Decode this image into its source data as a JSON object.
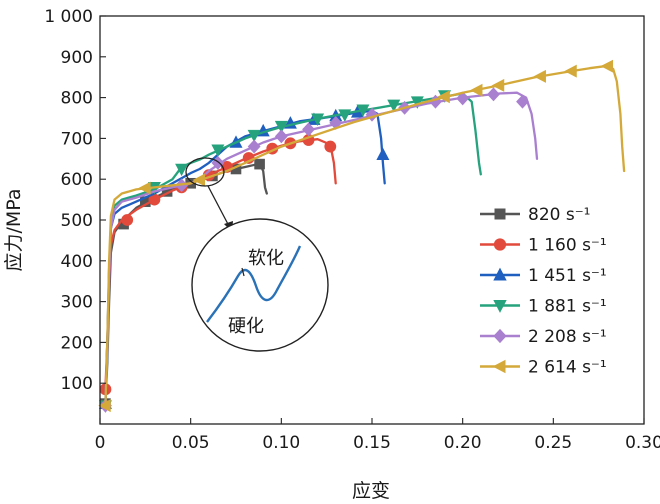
{
  "chart_data": {
    "type": "line",
    "xlabel": "应变",
    "ylabel": "应力/MPa",
    "xlim": [
      0,
      0.3
    ],
    "ylim": [
      0,
      1000
    ],
    "x_ticks": [
      {
        "value": 0,
        "label": "0"
      },
      {
        "value": 0.05,
        "label": "0.05"
      },
      {
        "value": 0.1,
        "label": "0.10"
      },
      {
        "value": 0.15,
        "label": "0.15"
      },
      {
        "value": 0.2,
        "label": "0.20"
      },
      {
        "value": 0.25,
        "label": "0.25"
      },
      {
        "value": 0.3,
        "label": "0.30"
      }
    ],
    "y_ticks": [
      {
        "value": 100,
        "label": "100"
      },
      {
        "value": 200,
        "label": "200"
      },
      {
        "value": 300,
        "label": "300"
      },
      {
        "value": 400,
        "label": "400"
      },
      {
        "value": 500,
        "label": "500"
      },
      {
        "value": 600,
        "label": "600"
      },
      {
        "value": 700,
        "label": "700"
      },
      {
        "value": 800,
        "label": "800"
      },
      {
        "value": 900,
        "label": "900"
      },
      {
        "value": 1000,
        "label": "1 000"
      }
    ],
    "legend_position": "right",
    "annotations": {
      "softening": "软化",
      "hardening": "硬化"
    },
    "series": [
      {
        "name": "820 s⁻¹",
        "color": "#555555",
        "marker": "square",
        "points": [
          [
            0.003,
            50
          ],
          [
            0.004,
            150
          ],
          [
            0.005,
            300
          ],
          [
            0.006,
            420
          ],
          [
            0.008,
            470
          ],
          [
            0.012,
            495
          ],
          [
            0.02,
            530
          ],
          [
            0.03,
            555
          ],
          [
            0.04,
            575
          ],
          [
            0.05,
            590
          ],
          [
            0.06,
            605
          ],
          [
            0.07,
            620
          ],
          [
            0.08,
            630
          ],
          [
            0.088,
            638
          ],
          [
            0.09,
            620
          ],
          [
            0.091,
            580
          ],
          [
            0.092,
            565
          ]
        ],
        "markers": [
          [
            0.003,
            50
          ],
          [
            0.013,
            490
          ],
          [
            0.025,
            545
          ],
          [
            0.037,
            570
          ],
          [
            0.05,
            590
          ],
          [
            0.062,
            608
          ],
          [
            0.075,
            625
          ],
          [
            0.088,
            637
          ]
        ]
      },
      {
        "name": "1 160 s⁻¹",
        "color": "#e24a3b",
        "marker": "circle",
        "points": [
          [
            0.003,
            85
          ],
          [
            0.004,
            200
          ],
          [
            0.005,
            350
          ],
          [
            0.006,
            440
          ],
          [
            0.008,
            475
          ],
          [
            0.012,
            500
          ],
          [
            0.02,
            525
          ],
          [
            0.03,
            550
          ],
          [
            0.04,
            572
          ],
          [
            0.05,
            590
          ],
          [
            0.06,
            610
          ],
          [
            0.07,
            630
          ],
          [
            0.08,
            650
          ],
          [
            0.09,
            668
          ],
          [
            0.1,
            682
          ],
          [
            0.11,
            693
          ],
          [
            0.12,
            698
          ],
          [
            0.127,
            685
          ],
          [
            0.129,
            640
          ],
          [
            0.13,
            590
          ]
        ],
        "markers": [
          [
            0.003,
            85
          ],
          [
            0.015,
            500
          ],
          [
            0.03,
            550
          ],
          [
            0.045,
            580
          ],
          [
            0.06,
            610
          ],
          [
            0.07,
            630
          ],
          [
            0.082,
            652
          ],
          [
            0.095,
            675
          ],
          [
            0.105,
            688
          ],
          [
            0.115,
            696
          ],
          [
            0.127,
            680
          ]
        ]
      },
      {
        "name": "1 451 s⁻¹",
        "color": "#1f5fbf",
        "marker": "triangle-up",
        "points": [
          [
            0.003,
            50
          ],
          [
            0.004,
            200
          ],
          [
            0.005,
            380
          ],
          [
            0.006,
            480
          ],
          [
            0.008,
            515
          ],
          [
            0.012,
            530
          ],
          [
            0.02,
            545
          ],
          [
            0.03,
            565
          ],
          [
            0.04,
            590
          ],
          [
            0.05,
            615
          ],
          [
            0.055,
            625
          ],
          [
            0.06,
            640
          ],
          [
            0.07,
            680
          ],
          [
            0.08,
            705
          ],
          [
            0.09,
            718
          ],
          [
            0.1,
            730
          ],
          [
            0.11,
            742
          ],
          [
            0.12,
            748
          ],
          [
            0.13,
            755
          ],
          [
            0.14,
            762
          ],
          [
            0.15,
            768
          ],
          [
            0.153,
            760
          ],
          [
            0.155,
            700
          ],
          [
            0.156,
            640
          ],
          [
            0.157,
            590
          ]
        ],
        "markers": [
          [
            0.003,
            50
          ],
          [
            0.075,
            690
          ],
          [
            0.09,
            718
          ],
          [
            0.105,
            737
          ],
          [
            0.118,
            746
          ],
          [
            0.13,
            755
          ],
          [
            0.142,
            764
          ],
          [
            0.156,
            660
          ]
        ]
      },
      {
        "name": "1 881 s⁻¹",
        "color": "#26a37c",
        "marker": "triangle-down",
        "points": [
          [
            0.003,
            45
          ],
          [
            0.004,
            180
          ],
          [
            0.005,
            370
          ],
          [
            0.006,
            490
          ],
          [
            0.008,
            535
          ],
          [
            0.012,
            550
          ],
          [
            0.02,
            560
          ],
          [
            0.03,
            575
          ],
          [
            0.04,
            600
          ],
          [
            0.045,
            630
          ],
          [
            0.05,
            640
          ],
          [
            0.055,
            648
          ],
          [
            0.06,
            660
          ],
          [
            0.07,
            680
          ],
          [
            0.08,
            700
          ],
          [
            0.09,
            715
          ],
          [
            0.1,
            728
          ],
          [
            0.12,
            748
          ],
          [
            0.14,
            765
          ],
          [
            0.16,
            780
          ],
          [
            0.18,
            795
          ],
          [
            0.2,
            810
          ],
          [
            0.205,
            790
          ],
          [
            0.207,
            720
          ],
          [
            0.209,
            640
          ],
          [
            0.21,
            612
          ]
        ],
        "markers": [
          [
            0.003,
            45
          ],
          [
            0.03,
            580
          ],
          [
            0.045,
            625
          ],
          [
            0.065,
            672
          ],
          [
            0.085,
            708
          ],
          [
            0.1,
            730
          ],
          [
            0.12,
            748
          ],
          [
            0.135,
            758
          ],
          [
            0.145,
            770
          ],
          [
            0.162,
            782
          ],
          [
            0.175,
            790
          ],
          [
            0.19,
            805
          ]
        ]
      },
      {
        "name": "2 208 s⁻¹",
        "color": "#a97fd0",
        "marker": "diamond",
        "points": [
          [
            0.003,
            45
          ],
          [
            0.004,
            180
          ],
          [
            0.005,
            360
          ],
          [
            0.006,
            480
          ],
          [
            0.008,
            525
          ],
          [
            0.012,
            545
          ],
          [
            0.02,
            555
          ],
          [
            0.03,
            570
          ],
          [
            0.04,
            580
          ],
          [
            0.05,
            590
          ],
          [
            0.055,
            600
          ],
          [
            0.06,
            620
          ],
          [
            0.07,
            650
          ],
          [
            0.08,
            670
          ],
          [
            0.09,
            690
          ],
          [
            0.1,
            705
          ],
          [
            0.12,
            725
          ],
          [
            0.14,
            745
          ],
          [
            0.16,
            765
          ],
          [
            0.18,
            785
          ],
          [
            0.2,
            800
          ],
          [
            0.22,
            810
          ],
          [
            0.23,
            812
          ],
          [
            0.235,
            800
          ],
          [
            0.238,
            760
          ],
          [
            0.24,
            700
          ],
          [
            0.241,
            650
          ]
        ],
        "markers": [
          [
            0.003,
            45
          ],
          [
            0.045,
            585
          ],
          [
            0.065,
            640
          ],
          [
            0.085,
            680
          ],
          [
            0.1,
            705
          ],
          [
            0.115,
            722
          ],
          [
            0.13,
            738
          ],
          [
            0.15,
            758
          ],
          [
            0.168,
            775
          ],
          [
            0.185,
            790
          ],
          [
            0.2,
            798
          ],
          [
            0.217,
            808
          ],
          [
            0.233,
            790
          ]
        ]
      },
      {
        "name": "2 614 s⁻¹",
        "color": "#d4a93a",
        "marker": "triangle-left",
        "points": [
          [
            0.003,
            45
          ],
          [
            0.004,
            200
          ],
          [
            0.005,
            400
          ],
          [
            0.006,
            510
          ],
          [
            0.008,
            550
          ],
          [
            0.012,
            565
          ],
          [
            0.02,
            575
          ],
          [
            0.03,
            580
          ],
          [
            0.04,
            585
          ],
          [
            0.05,
            590
          ],
          [
            0.06,
            605
          ],
          [
            0.07,
            620
          ],
          [
            0.08,
            640
          ],
          [
            0.09,
            660
          ],
          [
            0.1,
            680
          ],
          [
            0.12,
            710
          ],
          [
            0.14,
            740
          ],
          [
            0.16,
            765
          ],
          [
            0.18,
            790
          ],
          [
            0.2,
            812
          ],
          [
            0.22,
            830
          ],
          [
            0.24,
            850
          ],
          [
            0.26,
            865
          ],
          [
            0.27,
            872
          ],
          [
            0.28,
            878
          ],
          [
            0.283,
            870
          ],
          [
            0.285,
            840
          ],
          [
            0.287,
            760
          ],
          [
            0.288,
            680
          ],
          [
            0.289,
            620
          ]
        ],
        "markers": [
          [
            0.003,
            45
          ],
          [
            0.025,
            578
          ],
          [
            0.055,
            598
          ],
          [
            0.19,
            802
          ],
          [
            0.208,
            818
          ],
          [
            0.22,
            830
          ],
          [
            0.243,
            852
          ],
          [
            0.26,
            865
          ],
          [
            0.28,
            877
          ]
        ]
      }
    ]
  }
}
